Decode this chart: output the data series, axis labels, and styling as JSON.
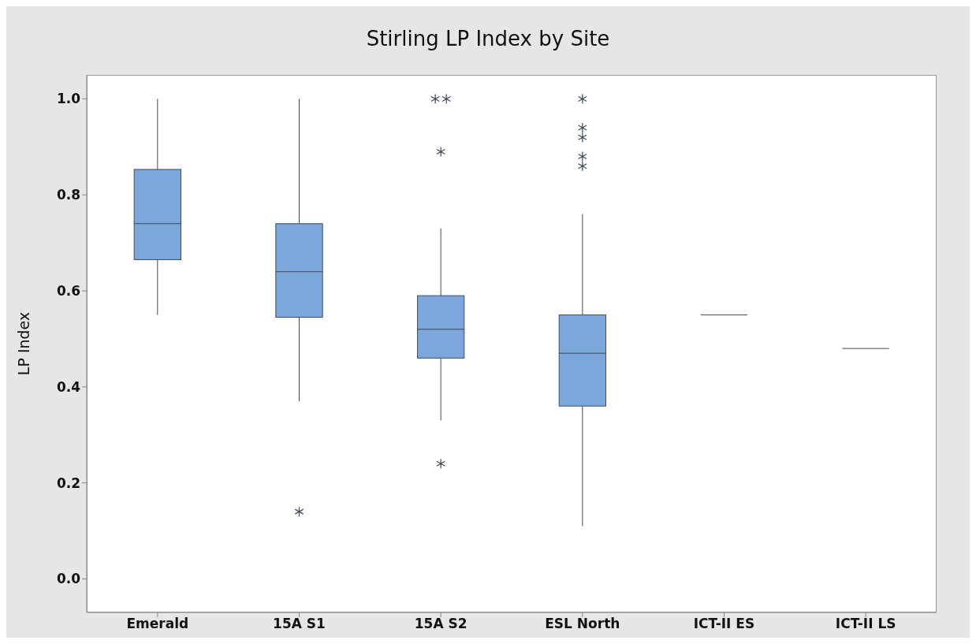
{
  "chart_data": {
    "type": "box",
    "title": "Stirling LP Index by Site",
    "ylabel": "LP Index",
    "categories": [
      "Emerald",
      "15A S1",
      "15A S2",
      "ESL North",
      "ICT-II ES",
      "ICT-II LS"
    ],
    "colors": [
      "#7ba7dc",
      "#7ba7dc",
      "#7ba7dc",
      "#7ba7dc",
      "#404a58",
      "#404a58"
    ],
    "boxes": [
      {
        "low": 0.55,
        "q1": 0.665,
        "median": 0.74,
        "q3": 0.853,
        "high": 1.0
      },
      {
        "low": 0.37,
        "q1": 0.545,
        "median": 0.64,
        "q3": 0.74,
        "high": 1.0,
        "outliers": [
          0.14
        ]
      },
      {
        "low": 0.33,
        "q1": 0.46,
        "median": 0.52,
        "q3": 0.59,
        "high": 0.73,
        "outliers": [
          1.0,
          1.0,
          0.89,
          0.24
        ]
      },
      {
        "low": 0.11,
        "q1": 0.36,
        "median": 0.47,
        "q3": 0.55,
        "high": 0.76,
        "outliers": [
          1.0,
          0.94,
          0.92,
          0.88,
          0.86
        ]
      },
      {
        "low": 0.55,
        "q1": 0.55,
        "median": 0.55,
        "q3": 0.55,
        "high": 0.55
      },
      {
        "low": 0.48,
        "q1": 0.48,
        "median": 0.48,
        "q3": 0.48,
        "high": 0.48
      }
    ],
    "ylim": [
      -0.07,
      1.05
    ],
    "yticks": [
      {
        "value": 0,
        "label": "0.0"
      },
      0.2,
      0.4,
      0.6,
      0.8,
      {
        "value": 1,
        "label": "1.0"
      }
    ]
  }
}
